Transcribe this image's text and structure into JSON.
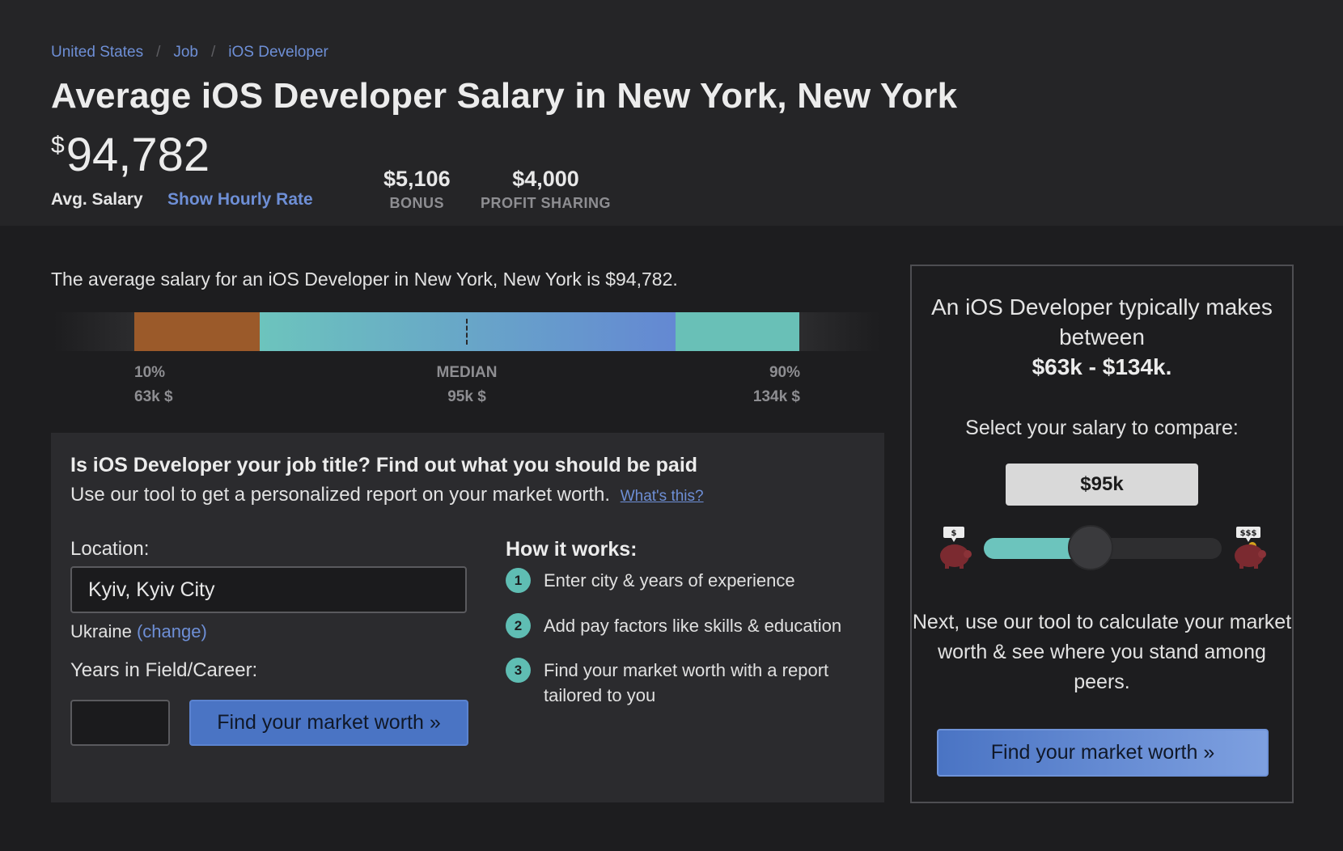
{
  "breadcrumb": [
    "United States",
    "Job",
    "iOS Developer"
  ],
  "page_title": "Average iOS Developer Salary in New York, New York",
  "salary": {
    "currency_symbol": "$",
    "amount": "94,782",
    "label": "Avg. Salary",
    "hourly_link": "Show Hourly Rate"
  },
  "stats": [
    {
      "value": "$5,106",
      "label": "BONUS"
    },
    {
      "value": "$4,000",
      "label": "PROFIT SHARING"
    }
  ],
  "intro_text": "The average salary for an iOS Developer in New York, New York is $94,782.",
  "distribution": {
    "p10_label": "10%",
    "p10_value": "63k $",
    "median_label": "MEDIAN",
    "median_value": "95k $",
    "p90_label": "90%",
    "p90_value": "134k $",
    "colors": {
      "low": "#9b5a2a",
      "mid_start": "#6cc4bd",
      "mid_end": "#6488d3",
      "high": "#69c0b7"
    }
  },
  "tool": {
    "heading": "Is iOS Developer your job title? Find out what you should be paid",
    "subtext": "Use our tool to get a personalized report on your market worth.",
    "whats_this": "What's this?",
    "location_label": "Location:",
    "location_value": "Kyiv, Kyiv City",
    "country": "Ukraine",
    "change_link": "(change)",
    "years_label": "Years in Field/Career:",
    "button": "Find your market worth »",
    "how_title": "How it works:",
    "steps": [
      {
        "num": "1",
        "text": "Enter city & years of experience"
      },
      {
        "num": "2",
        "text": "Add pay factors like skills & education"
      },
      {
        "num": "3",
        "text": "Find your market worth with a report tailored to you"
      }
    ]
  },
  "side": {
    "typically": "An iOS Developer typically makes between",
    "range": "$63k - $134k.",
    "select_label": "Select your salary to compare:",
    "selected_salary": "$95k",
    "slider_fraction": 0.45,
    "low_tag": "$",
    "high_tag": "$$$",
    "next_text": "Next, use our tool to calculate your market worth & see where you stand among peers.",
    "button": "Find your market worth »"
  },
  "accent_color": "#6e8fd6"
}
